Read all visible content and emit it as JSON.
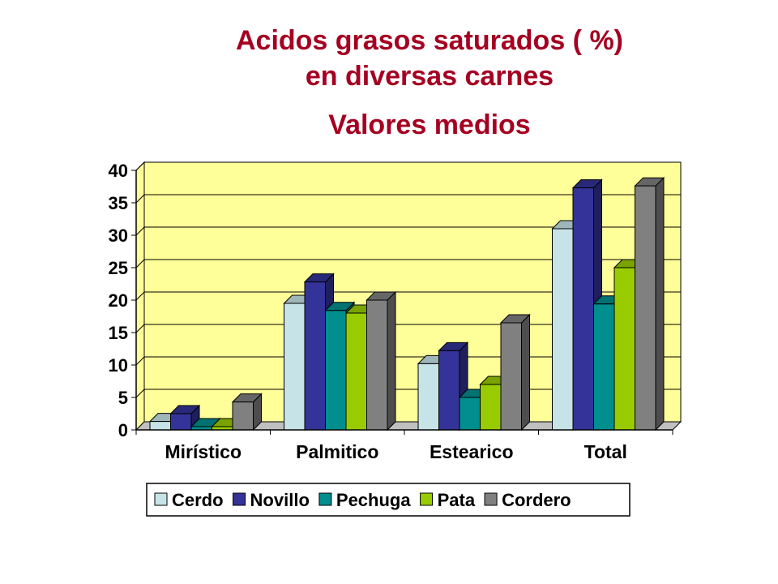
{
  "title_lines": [
    "Acidos grasos saturados ( %)",
    "en diversas carnes",
    "Valores medios"
  ],
  "chart_data": {
    "type": "bar",
    "title": "Acidos grasos saturados ( %) en diversas carnes Valores medios",
    "xlabel": "",
    "ylabel": "",
    "categories": [
      "Mirístico",
      "Palmitico",
      "Estearico",
      "Total"
    ],
    "ylim": [
      0,
      40
    ],
    "yticks": [
      "0",
      "5",
      "10",
      "15",
      "20",
      "25",
      "30",
      "35",
      "40"
    ],
    "grid": true,
    "legend_position": "bottom",
    "series": [
      {
        "name": "Cerdo",
        "values": [
          1.3,
          19.5,
          10.2,
          31.0
        ],
        "color": "#C6E3E8"
      },
      {
        "name": "Novillo",
        "values": [
          2.5,
          22.8,
          12.2,
          37.3
        ],
        "color": "#333399"
      },
      {
        "name": "Pechuga",
        "values": [
          0.5,
          18.4,
          5.0,
          19.4
        ],
        "color": "#008E8E"
      },
      {
        "name": "Pata",
        "values": [
          0.5,
          18.0,
          7.0,
          25.0
        ],
        "color": "#99CC00"
      },
      {
        "name": "Cordero",
        "values": [
          4.3,
          20.0,
          16.5,
          37.6
        ],
        "color": "#808080"
      }
    ],
    "colors": {
      "plot_background": "#FFFF99",
      "floor": "#C0C0C0",
      "title": "#A50021"
    }
  }
}
